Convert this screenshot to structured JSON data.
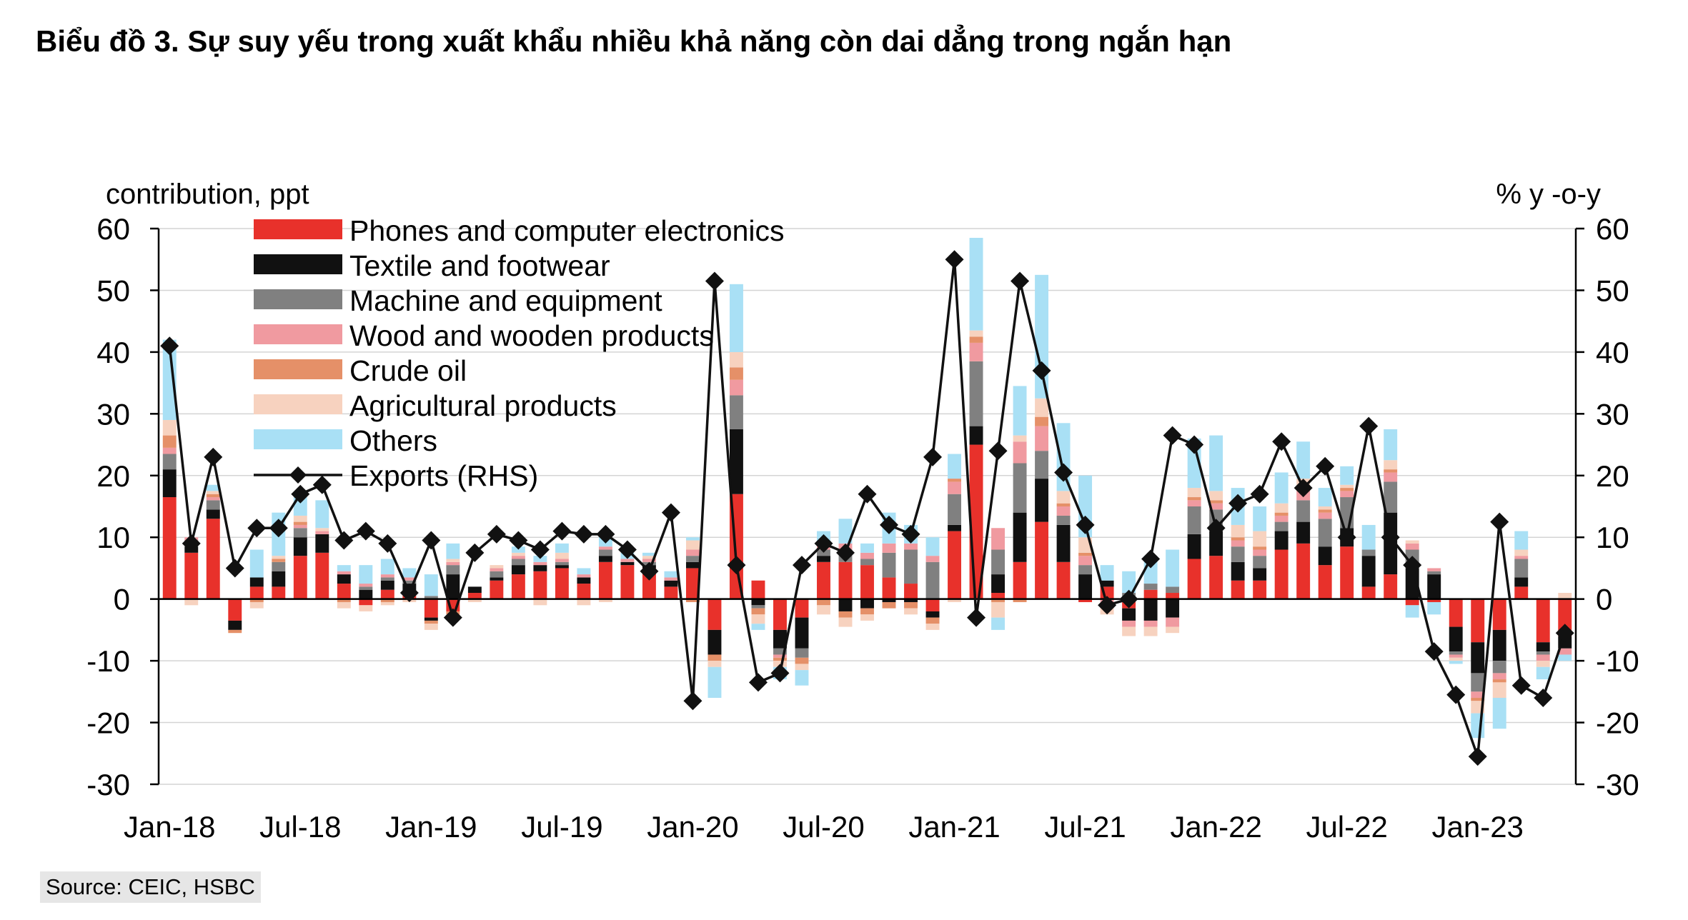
{
  "title": "Biểu đồ 3. Sự suy yếu trong xuất khẩu nhiều khả năng còn dai dẳng trong ngắn hạn",
  "source": "Source: CEIC, HSBC",
  "chart_data": {
    "type": "bar",
    "stacked": true,
    "left_axis_label": "contribution, ppt",
    "right_axis_label": "% y -o-y",
    "ylim": [
      -30,
      60
    ],
    "yticks": [
      60,
      50,
      40,
      30,
      20,
      10,
      0,
      -10,
      -20,
      -30
    ],
    "x_tick_labels": [
      {
        "label": "Jan-18",
        "index": 0
      },
      {
        "label": "Jul-18",
        "index": 6
      },
      {
        "label": "Jan-19",
        "index": 12
      },
      {
        "label": "Jul-19",
        "index": 18
      },
      {
        "label": "Jan-20",
        "index": 24
      },
      {
        "label": "Jul-20",
        "index": 30
      },
      {
        "label": "Jan-21",
        "index": 36
      },
      {
        "label": "Jul-21",
        "index": 42
      },
      {
        "label": "Jan-22",
        "index": 48
      },
      {
        "label": "Jul-22",
        "index": 54
      },
      {
        "label": "Jan-23",
        "index": 60
      }
    ],
    "months": [
      "Jan-18",
      "Feb-18",
      "Mar-18",
      "Apr-18",
      "May-18",
      "Jun-18",
      "Jul-18",
      "Aug-18",
      "Sep-18",
      "Oct-18",
      "Nov-18",
      "Dec-18",
      "Jan-19",
      "Feb-19",
      "Mar-19",
      "Apr-19",
      "May-19",
      "Jun-19",
      "Jul-19",
      "Aug-19",
      "Sep-19",
      "Oct-19",
      "Nov-19",
      "Dec-19",
      "Jan-20",
      "Feb-20",
      "Mar-20",
      "Apr-20",
      "May-20",
      "Jun-20",
      "Jul-20",
      "Aug-20",
      "Sep-20",
      "Oct-20",
      "Nov-20",
      "Dec-20",
      "Jan-21",
      "Feb-21",
      "Mar-21",
      "Apr-21",
      "May-21",
      "Jun-21",
      "Jul-21",
      "Aug-21",
      "Sep-21",
      "Oct-21",
      "Nov-21",
      "Dec-21",
      "Jan-22",
      "Feb-22",
      "Mar-22",
      "Apr-22",
      "May-22",
      "Jun-22",
      "Jul-22",
      "Aug-22",
      "Sep-22",
      "Oct-22",
      "Nov-22",
      "Dec-22",
      "Jan-23",
      "Feb-23",
      "Mar-23",
      "Apr-23",
      "May-23"
    ],
    "legend_position": "top-left",
    "series": [
      {
        "name": "Phones and computer electronics",
        "color": "#e8312b",
        "kind": "bar",
        "values": [
          16.5,
          7.5,
          13,
          -3.5,
          2,
          2,
          7,
          7.5,
          2.5,
          -1,
          1.5,
          1,
          -3,
          -2,
          1,
          3,
          4,
          4.5,
          5,
          2.5,
          6,
          5.5,
          5,
          2,
          5,
          -5,
          17,
          3,
          -5,
          -3,
          6,
          6,
          5.5,
          3.5,
          2.5,
          -2,
          11,
          25,
          1,
          6,
          12.5,
          6,
          -0.5,
          2,
          -1.5,
          1.5,
          1,
          6.5,
          7,
          3,
          3,
          8,
          9,
          5.5,
          8.5,
          2,
          4,
          -1,
          -0.5,
          -4.5,
          -7,
          -5,
          2,
          -7,
          -6
        ]
      },
      {
        "name": "Textile and footwear",
        "color": "#111111",
        "kind": "bar",
        "values": [
          4.5,
          1,
          1.5,
          -1.5,
          1.5,
          2.5,
          3,
          3,
          1.5,
          1.5,
          1.5,
          1.5,
          -0.5,
          4,
          1,
          0.5,
          1.5,
          1,
          0.5,
          1,
          1,
          0.5,
          0.5,
          1,
          1,
          -4,
          10.5,
          -1,
          -3,
          -5,
          1,
          -2,
          -1.5,
          -0.5,
          -0.5,
          -1,
          1,
          3,
          3,
          8,
          7,
          6,
          4,
          1,
          -2,
          -3.5,
          -3,
          4,
          4,
          3,
          2,
          3,
          3.5,
          3,
          3,
          5,
          10,
          5,
          4,
          -4,
          -5,
          -5,
          1.5,
          -1.5,
          -2
        ]
      },
      {
        "name": "Machine and equipment",
        "color": "#808080",
        "kind": "bar",
        "values": [
          2.5,
          1,
          1.5,
          0,
          0,
          1.5,
          1.5,
          0,
          0,
          0.5,
          0.5,
          0.5,
          0.5,
          1.5,
          0,
          1,
          1,
          0,
          0.5,
          0,
          1,
          0,
          0.5,
          0,
          1,
          0,
          5.5,
          -0.5,
          -1,
          -1.5,
          1,
          2,
          1,
          4,
          5.5,
          6,
          5,
          10.5,
          4,
          8,
          4.5,
          1.5,
          1.5,
          0,
          1,
          1,
          1,
          4.5,
          3.5,
          2.5,
          2,
          1.5,
          3.5,
          4.5,
          5,
          1,
          5,
          3,
          0.5,
          -0.5,
          -3,
          -2,
          3,
          -0.5,
          0
        ]
      },
      {
        "name": "Wood and wooden products",
        "color": "#f09aa0",
        "kind": "bar",
        "values": [
          1,
          0.5,
          0.5,
          0,
          0,
          0,
          0.5,
          0.5,
          0.5,
          0.5,
          0.5,
          0.5,
          0,
          0.5,
          0,
          0.5,
          0.5,
          0.5,
          0.5,
          0.5,
          0.5,
          0.5,
          0.5,
          0.5,
          1,
          0,
          2.5,
          0,
          -0.5,
          0,
          1,
          1,
          1,
          1.5,
          1,
          1,
          2,
          3,
          3.5,
          3.5,
          4,
          1.5,
          1.5,
          -1,
          -1,
          -1,
          -1.5,
          1,
          1,
          1,
          1,
          1,
          1.5,
          1,
          1,
          0,
          1.5,
          1,
          0.5,
          -0.5,
          -1,
          -1,
          0.5,
          -1,
          -1
        ]
      },
      {
        "name": "Crude oil",
        "color": "#e59068",
        "kind": "bar",
        "values": [
          2,
          0,
          0.5,
          -0.5,
          -0.5,
          0.5,
          0.5,
          0,
          -0.5,
          0,
          -0.5,
          0,
          -0.5,
          -0.5,
          0,
          0,
          0,
          0,
          0,
          0,
          0,
          0,
          0,
          0,
          -0.5,
          -1,
          2,
          -1,
          -0.5,
          -1,
          -1,
          -1,
          -1,
          -1,
          -1,
          -1,
          0.5,
          1,
          -0.5,
          -0.5,
          1.5,
          0.5,
          0.5,
          0,
          0,
          0,
          0,
          0.5,
          0.5,
          0.5,
          0.5,
          0.5,
          0.5,
          0.5,
          0.5,
          0,
          0.5,
          0,
          0,
          0,
          -0.5,
          -0.5,
          0,
          0,
          0
        ]
      },
      {
        "name": "Agricultural products",
        "color": "#f7d2bf",
        "kind": "bar",
        "values": [
          2.5,
          -1,
          0.5,
          0,
          -1,
          0.5,
          1,
          0.5,
          -1,
          -1,
          -0.5,
          -0.5,
          -1,
          0.5,
          -0.5,
          0.5,
          0.5,
          -1,
          1,
          -1,
          -0.5,
          0,
          0.5,
          0,
          1.5,
          -1,
          2.5,
          -1.5,
          -1,
          -1,
          -1.5,
          -1.5,
          -1,
          0,
          -1,
          -1,
          -0.5,
          1,
          -2.5,
          1,
          3,
          2,
          2.5,
          -1.5,
          -1.5,
          -1.5,
          -1,
          1.5,
          1.5,
          2,
          2.5,
          1.5,
          1.5,
          0.5,
          0.5,
          0,
          1.5,
          0.5,
          0,
          -0.5,
          -2,
          -2.5,
          1,
          -1,
          1
        ]
      },
      {
        "name": "Others",
        "color": "#a9e0f5",
        "kind": "bar",
        "values": [
          13,
          0,
          1,
          0,
          4.5,
          7,
          3,
          4.5,
          1,
          3,
          2.5,
          1.5,
          3.5,
          2.5,
          0,
          0,
          1,
          1,
          1.5,
          1,
          1.5,
          1,
          0.5,
          1,
          0.5,
          -5,
          11,
          -1,
          -2,
          -2.5,
          2,
          4,
          1.5,
          5,
          3,
          3,
          4,
          15,
          -2,
          8,
          20,
          11,
          10,
          2.5,
          3.5,
          4.5,
          6,
          8,
          9,
          6,
          4,
          5,
          6,
          3,
          3,
          4,
          5,
          -2,
          -2,
          -0.5,
          -4,
          -5,
          3,
          -2,
          -1
        ]
      },
      {
        "name": "Exports (RHS)",
        "color": "#111111",
        "kind": "line",
        "values": [
          41,
          9,
          23,
          5,
          11.5,
          11.5,
          17,
          18.5,
          9.5,
          11,
          9,
          1,
          9.5,
          -3,
          7.5,
          10.5,
          9.5,
          8,
          11,
          10.5,
          10.5,
          8,
          4.5,
          14,
          -16.5,
          51.5,
          5.5,
          -13.5,
          -12,
          5.5,
          9,
          7.5,
          17,
          12,
          10.5,
          23,
          55,
          -3,
          24,
          51.5,
          37,
          20.5,
          12,
          -1,
          0,
          6.5,
          26.5,
          25,
          11.5,
          15.5,
          17,
          25.5,
          18,
          21.5,
          10,
          28,
          10,
          5.5,
          -8.5,
          -15.5,
          -25.5,
          12.5,
          -14,
          -16,
          -5.5
        ]
      }
    ]
  }
}
